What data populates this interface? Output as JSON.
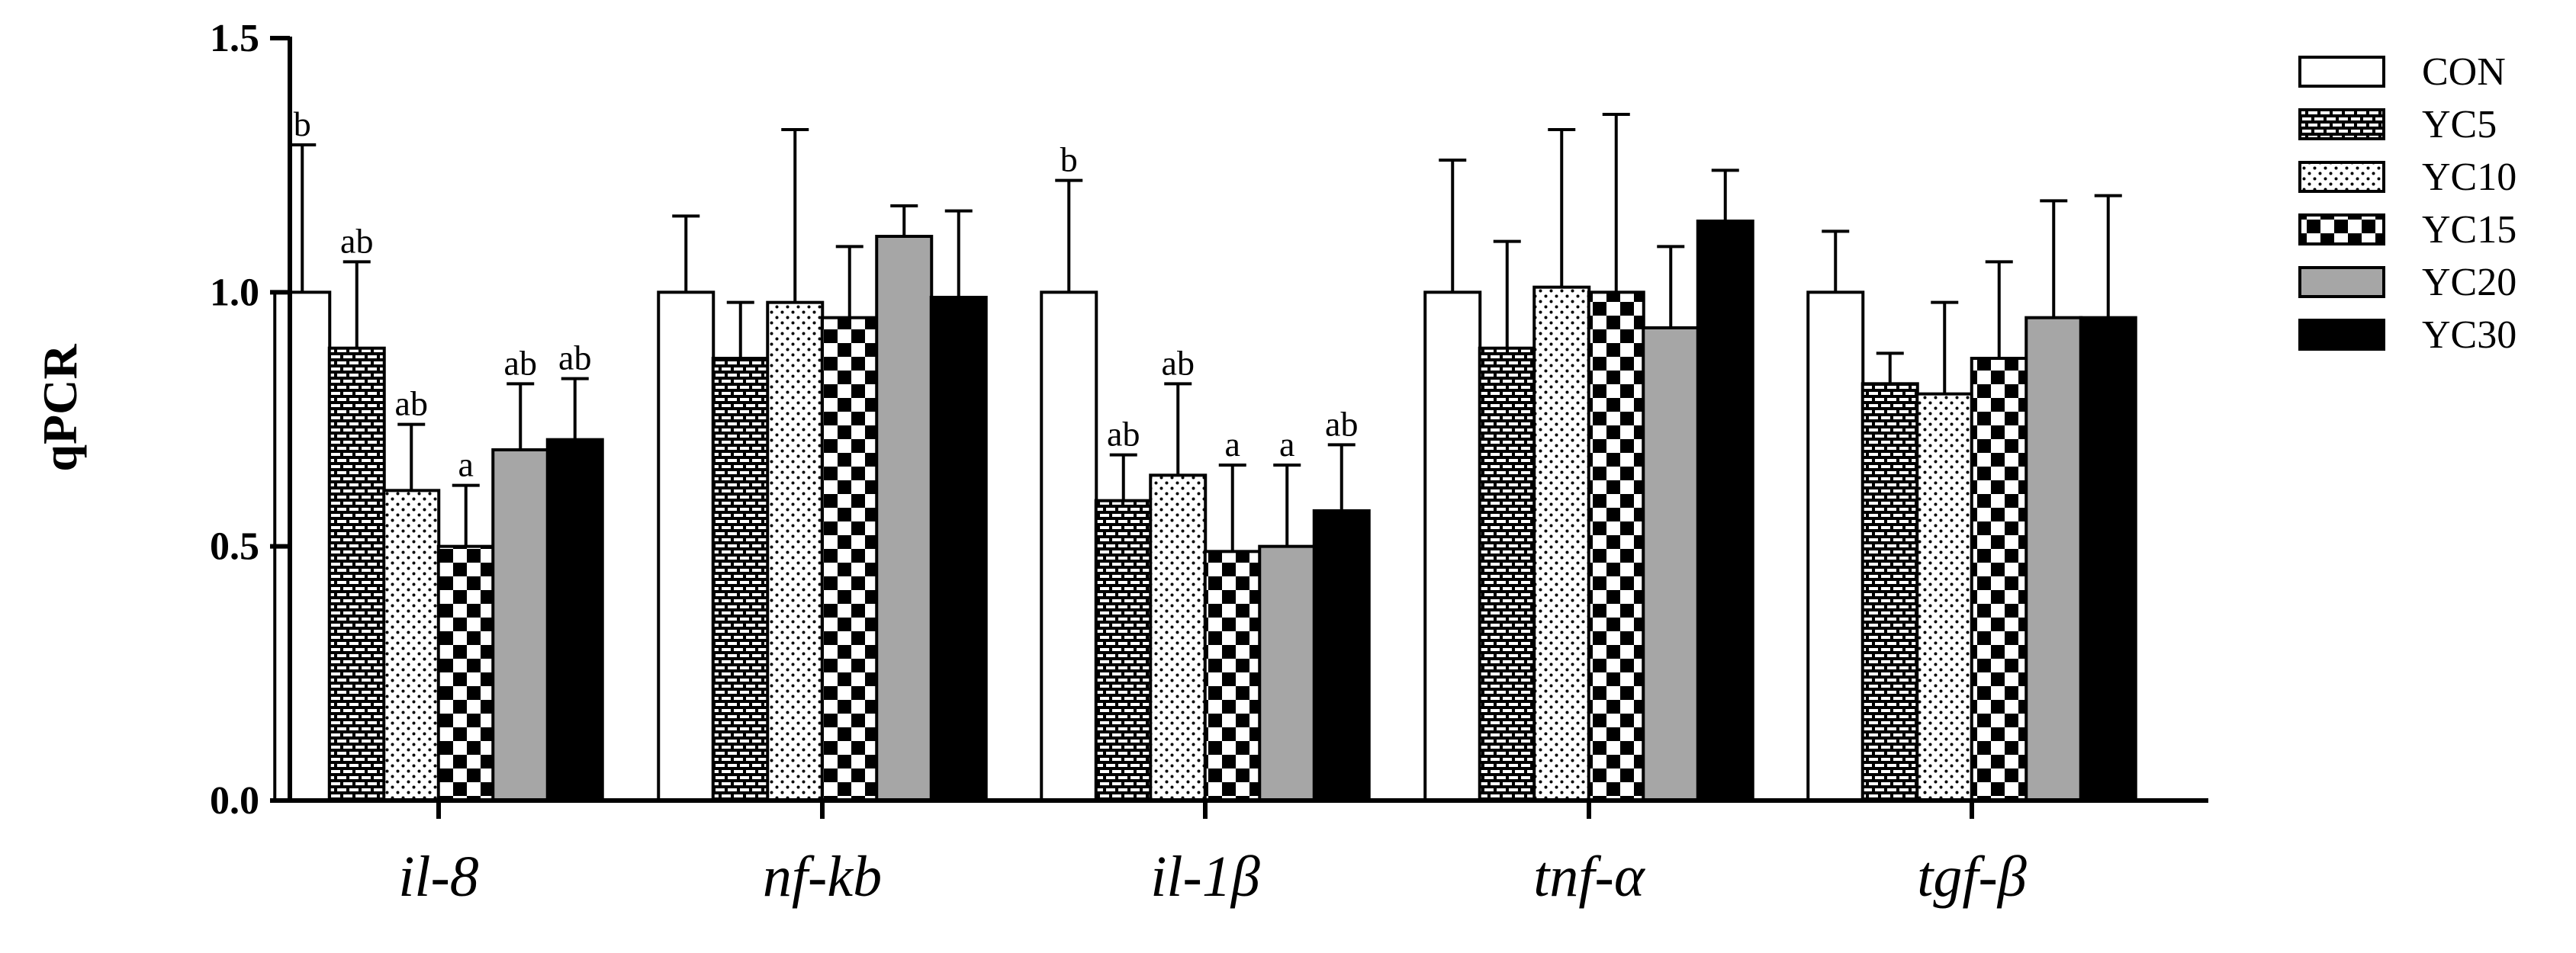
{
  "chart_data": {
    "type": "bar",
    "title": "",
    "xlabel": "",
    "ylabel": "qPCR",
    "ylim": [
      0,
      1.5
    ],
    "yticks": [
      "0.0",
      "0.5",
      "1.0",
      "1.5"
    ],
    "ytick_values": [
      0,
      0.5,
      1.0,
      1.5
    ],
    "grid": false,
    "legend_position": "top-right",
    "categories": [
      "il-8",
      "nf-kb",
      "il-1β",
      "tnf-α",
      "tgf-β"
    ],
    "series": [
      {
        "name": "CON",
        "pattern": "white",
        "values": [
          1.0,
          1.0,
          1.0,
          1.0,
          1.0
        ],
        "errors": [
          0.29,
          0.15,
          0.22,
          0.26,
          0.12
        ],
        "letters": [
          "b",
          "",
          "b",
          "",
          ""
        ]
      },
      {
        "name": "YC5",
        "pattern": "brick",
        "values": [
          0.89,
          0.87,
          0.59,
          0.89,
          0.82
        ],
        "errors": [
          0.17,
          0.11,
          0.09,
          0.21,
          0.06
        ],
        "letters": [
          "ab",
          "",
          "ab",
          "",
          ""
        ]
      },
      {
        "name": "YC10",
        "pattern": "dots",
        "values": [
          0.61,
          0.98,
          0.64,
          1.01,
          0.8
        ],
        "errors": [
          0.13,
          0.34,
          0.18,
          0.31,
          0.18
        ],
        "letters": [
          "ab",
          "",
          "ab",
          "",
          ""
        ]
      },
      {
        "name": "YC15",
        "pattern": "checker",
        "values": [
          0.5,
          0.95,
          0.49,
          1.0,
          0.87
        ],
        "errors": [
          0.12,
          0.14,
          0.17,
          0.35,
          0.19
        ],
        "letters": [
          "a",
          "",
          "a",
          "",
          ""
        ]
      },
      {
        "name": "YC20",
        "pattern": "gray",
        "values": [
          0.69,
          1.11,
          0.5,
          0.93,
          0.95
        ],
        "errors": [
          0.13,
          0.06,
          0.16,
          0.16,
          0.23
        ],
        "letters": [
          "ab",
          "",
          "a",
          "",
          ""
        ]
      },
      {
        "name": "YC30",
        "pattern": "black",
        "values": [
          0.71,
          0.99,
          0.57,
          1.14,
          0.95
        ],
        "errors": [
          0.12,
          0.17,
          0.13,
          0.1,
          0.24
        ],
        "letters": [
          "ab",
          "",
          "ab",
          "",
          ""
        ]
      }
    ]
  },
  "colors": {
    "axis": "#000000",
    "bar_outline": "#000000",
    "gray_fill": "#a6a6a6",
    "black_fill": "#000000",
    "white_fill": "#ffffff"
  }
}
